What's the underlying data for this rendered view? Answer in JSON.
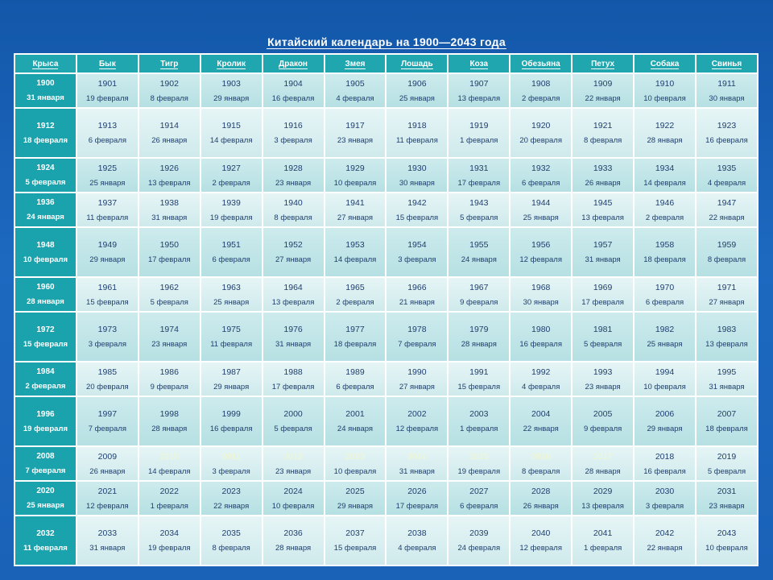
{
  "title": "Китайский календарь на 1900—2043 года",
  "animals": [
    "Крыса",
    "Бык",
    "Тигр",
    "Кролик",
    "Дракон",
    "Змея",
    "Лошадь",
    "Коза",
    "Обезьяна",
    "Петух",
    "Собака",
    "Свинья"
  ],
  "rows": [
    {
      "cells": [
        [
          "1900",
          "31 января"
        ],
        [
          "1901",
          "19 февраля"
        ],
        [
          "1902",
          "8 февраля"
        ],
        [
          "1903",
          "29 января"
        ],
        [
          "1904",
          "16 февраля"
        ],
        [
          "1905",
          "4 февраля"
        ],
        [
          "1906",
          "25 января"
        ],
        [
          "1907",
          "13 февраля"
        ],
        [
          "1908",
          "2 февраля"
        ],
        [
          "1909",
          "22 января"
        ],
        [
          "1910",
          "10 февраля"
        ],
        [
          "1911",
          "30 января"
        ]
      ]
    },
    {
      "cells": [
        [
          "1912",
          "18 февраля"
        ],
        [
          "1913",
          "6 февраля"
        ],
        [
          "1914",
          "26 января"
        ],
        [
          "1915",
          "14 февраля"
        ],
        [
          "1916",
          "3 февраля"
        ],
        [
          "1917",
          "23 января"
        ],
        [
          "1918",
          "11 февраля"
        ],
        [
          "1919",
          "1 февраля"
        ],
        [
          "1920",
          "20 февраля"
        ],
        [
          "1921",
          "8 февраля"
        ],
        [
          "1922",
          "28 января"
        ],
        [
          "1923",
          "16 февраля"
        ]
      ]
    },
    {
      "cells": [
        [
          "1924",
          "5 февраля"
        ],
        [
          "1925",
          "25 января"
        ],
        [
          "1926",
          "13 февраля"
        ],
        [
          "1927",
          "2 февраля"
        ],
        [
          "1928",
          "23 января"
        ],
        [
          "1929",
          "10 февраля"
        ],
        [
          "1930",
          "30 января"
        ],
        [
          "1931",
          "17 февраля"
        ],
        [
          "1932",
          "6 февраля"
        ],
        [
          "1933",
          "26 января"
        ],
        [
          "1934",
          "14 февраля"
        ],
        [
          "1935",
          "4 февраля"
        ]
      ]
    },
    {
      "cells": [
        [
          "1936",
          "24 января"
        ],
        [
          "1937",
          "11 февраля"
        ],
        [
          "1938",
          "31 января"
        ],
        [
          "1939",
          "19 февраля"
        ],
        [
          "1940",
          "8 февраля"
        ],
        [
          "1941",
          "27 января"
        ],
        [
          "1942",
          "15 февраля"
        ],
        [
          "1943",
          "5 февраля"
        ],
        [
          "1944",
          "25 января"
        ],
        [
          "1945",
          "13 февраля"
        ],
        [
          "1946",
          "2 февраля"
        ],
        [
          "1947",
          "22 января"
        ]
      ]
    },
    {
      "cells": [
        [
          "1948",
          "10 февраля"
        ],
        [
          "1949",
          "29 января"
        ],
        [
          "1950",
          "17 февраля"
        ],
        [
          "1951",
          "6 февраля"
        ],
        [
          "1952",
          "27 января"
        ],
        [
          "1953",
          "14 февраля"
        ],
        [
          "1954",
          "3 февраля"
        ],
        [
          "1955",
          "24 января"
        ],
        [
          "1956",
          "12 февраля"
        ],
        [
          "1957",
          "31 января"
        ],
        [
          "1958",
          "18 февраля"
        ],
        [
          "1959",
          "8 февраля"
        ]
      ]
    },
    {
      "cells": [
        [
          "1960",
          "28 января"
        ],
        [
          "1961",
          "15 февраля"
        ],
        [
          "1962",
          "5 февраля"
        ],
        [
          "1963",
          "25 января"
        ],
        [
          "1964",
          "13 февраля"
        ],
        [
          "1965",
          "2 февраля"
        ],
        [
          "1966",
          "21 января"
        ],
        [
          "1967",
          "9 февраля"
        ],
        [
          "1968",
          "30 января"
        ],
        [
          "1969",
          "17 февраля"
        ],
        [
          "1970",
          "6 февраля"
        ],
        [
          "1971",
          "27 января"
        ]
      ]
    },
    {
      "cells": [
        [
          "1972",
          "15 февраля"
        ],
        [
          "1973",
          "3 февраля"
        ],
        [
          "1974",
          "23 января"
        ],
        [
          "1975",
          "11 февраля"
        ],
        [
          "1976",
          "31 января"
        ],
        [
          "1977",
          "18 февраля"
        ],
        [
          "1978",
          "7 февраля"
        ],
        [
          "1979",
          "28 января"
        ],
        [
          "1980",
          "16 февраля"
        ],
        [
          "1981",
          "5 февраля"
        ],
        [
          "1982",
          "25 января"
        ],
        [
          "1983",
          "13 февраля"
        ]
      ]
    },
    {
      "cells": [
        [
          "1984",
          "2 февраля"
        ],
        [
          "1985",
          "20 февраля"
        ],
        [
          "1986",
          "9 февраля"
        ],
        [
          "1987",
          "29 января"
        ],
        [
          "1988",
          "17 февраля"
        ],
        [
          "1989",
          "6 февраля"
        ],
        [
          "1990",
          "27 января"
        ],
        [
          "1991",
          "15 февраля"
        ],
        [
          "1992",
          "4 февраля"
        ],
        [
          "1993",
          "23 января"
        ],
        [
          "1994",
          "10 февраля"
        ],
        [
          "1995",
          "31 января"
        ]
      ]
    },
    {
      "cells": [
        [
          "1996",
          "19 февраля"
        ],
        [
          "1997",
          "7 февраля"
        ],
        [
          "1998",
          "28 января"
        ],
        [
          "1999",
          "16 февраля"
        ],
        [
          "2000",
          "5 февраля"
        ],
        [
          "2001",
          "24 января"
        ],
        [
          "2002",
          "12 февраля"
        ],
        [
          "2003",
          "1 февраля"
        ],
        [
          "2004",
          "22 января"
        ],
        [
          "2005",
          "9 февраля"
        ],
        [
          "2006",
          "29 января"
        ],
        [
          "2007",
          "18 февраля"
        ]
      ]
    },
    {
      "cells": [
        [
          "2008",
          "7 февраля"
        ],
        [
          "2009",
          "26 января"
        ],
        [
          "2010",
          "14 февраля"
        ],
        [
          "2011",
          "3 февраля"
        ],
        [
          "2012",
          "23 января"
        ],
        [
          "2013",
          "10 февраля"
        ],
        [
          "2014",
          "31 января"
        ],
        [
          "2015",
          "19 февраля"
        ],
        [
          "2016",
          "8 февраля"
        ],
        [
          "2017",
          "28 января"
        ],
        [
          "2018",
          "16 февраля"
        ],
        [
          "2019",
          "5 февраля"
        ]
      ],
      "faded": [
        2,
        3,
        4,
        5,
        6,
        7,
        8,
        9
      ]
    },
    {
      "cells": [
        [
          "2020",
          "25 января"
        ],
        [
          "2021",
          "12 февраля"
        ],
        [
          "2022",
          "1 февраля"
        ],
        [
          "2023",
          "22 января"
        ],
        [
          "2024",
          "10 февраля"
        ],
        [
          "2025",
          "29 января"
        ],
        [
          "2026",
          "17 февраля"
        ],
        [
          "2027",
          "6 февраля"
        ],
        [
          "2028",
          "26 января"
        ],
        [
          "2029",
          "13 февраля"
        ],
        [
          "2030",
          "3 февраля"
        ],
        [
          "2031",
          "23 января"
        ]
      ]
    },
    {
      "cells": [
        [
          "2032",
          "11 февраля"
        ],
        [
          "2033",
          "31 января"
        ],
        [
          "2034",
          "19 февраля"
        ],
        [
          "2035",
          "8 февраля"
        ],
        [
          "2036",
          "28 января"
        ],
        [
          "2037",
          "15 февраля"
        ],
        [
          "2038",
          "4 февраля"
        ],
        [
          "2039",
          "24 февраля"
        ],
        [
          "2040",
          "12 февраля"
        ],
        [
          "2041",
          "1 февраля"
        ],
        [
          "2042",
          "22 января"
        ],
        [
          "2043",
          "10 февраля"
        ]
      ]
    }
  ]
}
